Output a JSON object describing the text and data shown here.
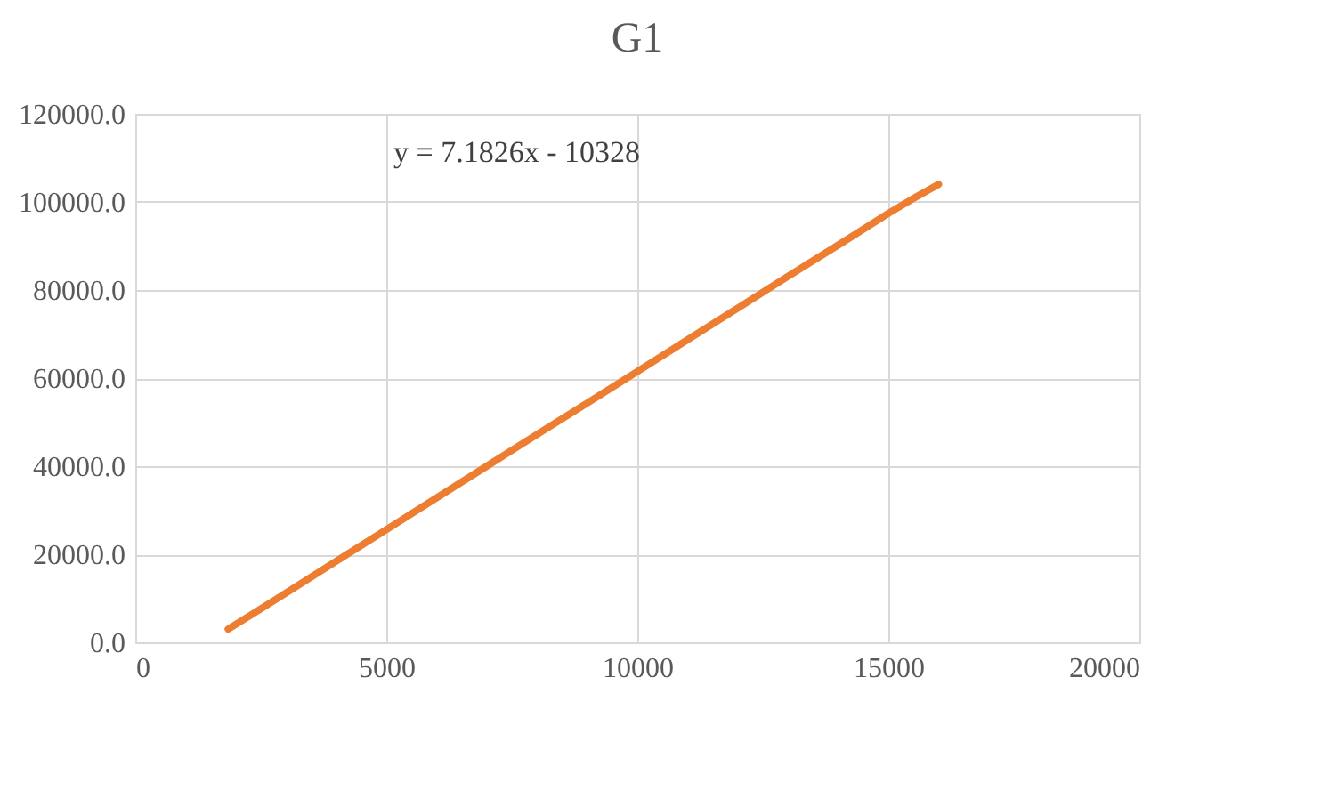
{
  "chart_data": {
    "type": "line",
    "title": "G1",
    "annotations": [
      "y = 7.1826x - 10328"
    ],
    "x": [
      1850,
      2500,
      3000,
      4000,
      5000,
      6000,
      7000,
      8000,
      9000,
      10000,
      11000,
      12000,
      13000,
      14000,
      15000,
      15500,
      16000
    ],
    "series": [
      {
        "color": "#ed7d31",
        "values": [
          3000,
          7600,
          11200,
          18400,
          25600,
          32800,
          40000,
          47200,
          54300,
          61500,
          68700,
          75900,
          83100,
          90200,
          97400,
          100800,
          104000
        ]
      }
    ],
    "xlim": [
      0,
      20000
    ],
    "xticks": [
      0,
      5000,
      10000,
      15000,
      20000
    ],
    "ylim": [
      0,
      120000
    ],
    "yticks": [
      {
        "value": 0,
        "label": "0.0"
      },
      {
        "value": 20000,
        "label": "20000.0"
      },
      {
        "value": 40000,
        "label": "40000.0"
      },
      {
        "value": 60000,
        "label": "60000.0"
      },
      {
        "value": 80000,
        "label": "80000.0"
      },
      {
        "value": 100000,
        "label": "100000.0"
      },
      {
        "value": 120000,
        "label": "120000.0"
      }
    ],
    "grid": true,
    "marker": "none",
    "line_style": "solid"
  }
}
